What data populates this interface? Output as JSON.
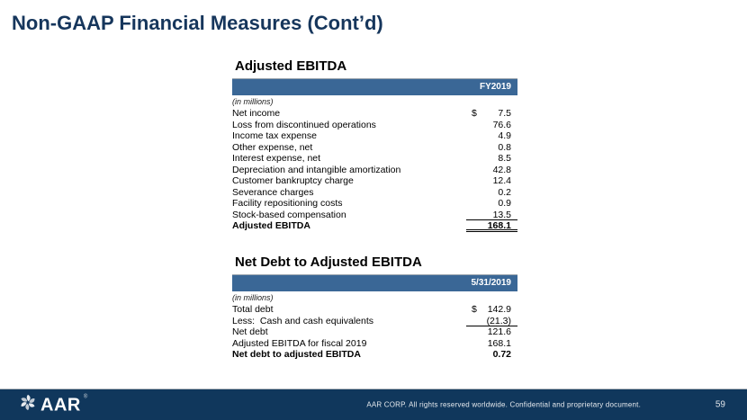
{
  "slide": {
    "title": "Non-GAAP Financial Measures (Cont’d)"
  },
  "tables": [
    {
      "title": "Adjusted EBITDA",
      "column_header": "FY2019",
      "units_note": "(in millions)",
      "rows": [
        {
          "label": "Net income",
          "dollar": "$",
          "value": "7.5"
        },
        {
          "label": "Loss from discontinued operations",
          "value": "76.6"
        },
        {
          "label": "Income tax expense",
          "value": "4.9"
        },
        {
          "label": "Other expense, net",
          "value": "0.8"
        },
        {
          "label": "Interest expense, net",
          "value": "8.5"
        },
        {
          "label": "Depreciation and intangible amortization",
          "value": "42.8"
        },
        {
          "label": "Customer bankruptcy charge",
          "value": "12.4"
        },
        {
          "label": "Severance charges",
          "value": "0.2"
        },
        {
          "label": "Facility repositioning costs",
          "value": "0.9"
        },
        {
          "label": "Stock-based compensation",
          "value": "13.5",
          "underline": "single"
        },
        {
          "label": "Adjusted EBITDA",
          "value": "168.1",
          "bold": true,
          "underline": "double"
        }
      ]
    },
    {
      "title": "Net Debt to Adjusted EBITDA",
      "column_header": "5/31/2019",
      "units_note": "(in millions)",
      "rows": [
        {
          "label": "Total debt",
          "dollar": "$",
          "value": "142.9"
        },
        {
          "label": "Less:  Cash and cash equivalents",
          "value": "(21.3)",
          "underline": "single"
        },
        {
          "label": "Net debt",
          "value": "121.6"
        },
        {
          "label": "Adjusted EBITDA for fiscal 2019",
          "value": "168.1"
        },
        {
          "label": "Net debt to adjusted EBITDA",
          "value": "0.72",
          "bold": true
        }
      ]
    }
  ],
  "footer": {
    "logo_text": "AAR",
    "logo_reg_mark": "®",
    "copyright": "AAR CORP. All rights reserved worldwide. Confidential and proprietary document.",
    "page_number": "59"
  },
  "colors": {
    "title_navy": "#16365C",
    "table_header_blue": "#3A6796",
    "footer_navy": "#10375C"
  }
}
